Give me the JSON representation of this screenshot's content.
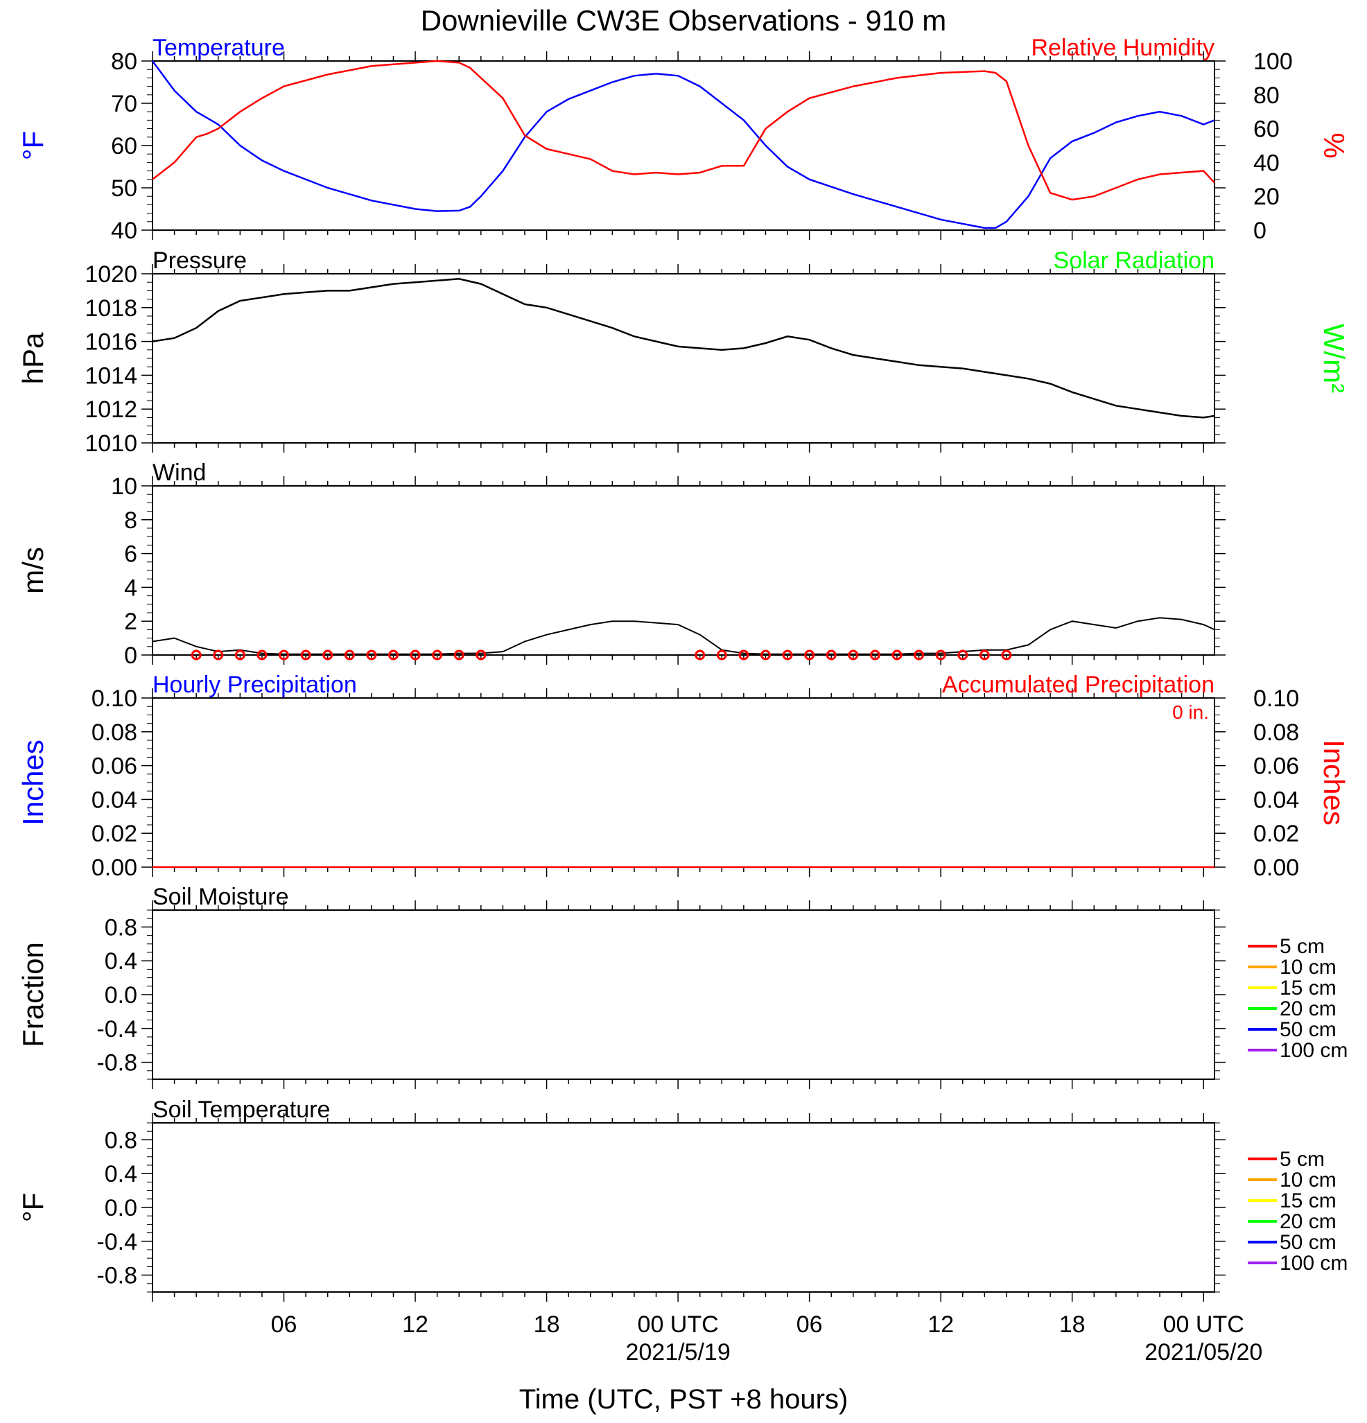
{
  "title": "Downieville CW3E Observations - 910 m",
  "x_axis": {
    "label": "Time (UTC, PST +8 hours)",
    "ticks": [
      {
        "h": 6,
        "label": "06",
        "date": ""
      },
      {
        "h": 12,
        "label": "12",
        "date": ""
      },
      {
        "h": 18,
        "label": "18",
        "date": ""
      },
      {
        "h": 24,
        "label": "00 UTC",
        "date": "2021/5/19"
      },
      {
        "h": 30,
        "label": "06",
        "date": ""
      },
      {
        "h": 36,
        "label": "12",
        "date": ""
      },
      {
        "h": 42,
        "label": "18",
        "date": ""
      },
      {
        "h": 48,
        "label": "00 UTC",
        "date": "2021/05/20"
      }
    ]
  },
  "chart_data": [
    {
      "type": "line",
      "panel": "temperature_humidity",
      "left_title": "Temperature",
      "right_title": "Relative Humidity",
      "ylabel_left": "°F",
      "ylabel_right": "%",
      "ylim_left": [
        40,
        80
      ],
      "ylim_right": [
        0,
        100
      ],
      "yticks_left": [
        "40",
        "50",
        "60",
        "70",
        "80"
      ],
      "yticks_right": [
        "0",
        "20",
        "40",
        "60",
        "80",
        "100"
      ],
      "colors": {
        "left": "#0000ff",
        "right": "#ff0000"
      },
      "x_hours": [
        0,
        1,
        2,
        2.5,
        3,
        4,
        5,
        6,
        8,
        10,
        12,
        13,
        14,
        14.5,
        15,
        16,
        17,
        18,
        19,
        20,
        21,
        22,
        23,
        24,
        25,
        26,
        27,
        28,
        29,
        30,
        32,
        34,
        36,
        38,
        38.5,
        39,
        40,
        41,
        42,
        43,
        44,
        45,
        46,
        47,
        48,
        48.5
      ],
      "series": [
        {
          "name": "Temperature",
          "axis": "left",
          "values": [
            80,
            73,
            68,
            66.5,
            65,
            60,
            56.5,
            54,
            50,
            47,
            45,
            44.5,
            44.6,
            45.5,
            48,
            54,
            62,
            68,
            71,
            73,
            75,
            76.5,
            77,
            76.5,
            74,
            70,
            66,
            60,
            55,
            52,
            48.5,
            45.5,
            42.5,
            40.5,
            40.5,
            42,
            48,
            57,
            61,
            63,
            65.5,
            67,
            68,
            67,
            65,
            66
          ]
        },
        {
          "name": "Relative Humidity",
          "axis": "right",
          "values": [
            30,
            40,
            55,
            57,
            60,
            70,
            78,
            85,
            92,
            97,
            99,
            100,
            99,
            96,
            90,
            78,
            56,
            48,
            45,
            42,
            35,
            33,
            34,
            33,
            34,
            38,
            38,
            60,
            70,
            78,
            85,
            90,
            93,
            94,
            93,
            88,
            50,
            22,
            18,
            20,
            25,
            30,
            33,
            34,
            35,
            28
          ]
        }
      ]
    },
    {
      "type": "line",
      "panel": "pressure",
      "left_title": "Pressure",
      "right_title": "Solar Radiation",
      "ylabel_left": "hPa",
      "ylabel_right": "W/m²",
      "ylim": [
        1010,
        1020
      ],
      "yticks": [
        "1010",
        "1012",
        "1014",
        "1016",
        "1018",
        "1020"
      ],
      "colors": {
        "line": "#000000",
        "right_title": "#00ff00"
      },
      "x_hours": [
        0,
        1,
        2,
        3,
        4,
        5,
        6,
        7,
        8,
        9,
        10,
        11,
        12,
        13,
        14,
        15,
        16,
        17,
        18,
        19,
        20,
        21,
        22,
        23,
        24,
        25,
        26,
        27,
        28,
        29,
        30,
        31,
        32,
        33,
        34,
        35,
        36,
        37,
        38,
        39,
        40,
        41,
        42,
        43,
        44,
        45,
        46,
        47,
        48,
        48.5
      ],
      "series": [
        {
          "name": "Pressure",
          "values": [
            1016,
            1016.2,
            1016.8,
            1017.8,
            1018.4,
            1018.6,
            1018.8,
            1018.9,
            1019.0,
            1019.0,
            1019.2,
            1019.4,
            1019.5,
            1019.6,
            1019.7,
            1019.4,
            1018.8,
            1018.2,
            1018.0,
            1017.6,
            1017.2,
            1016.8,
            1016.3,
            1016.0,
            1015.7,
            1015.6,
            1015.5,
            1015.6,
            1015.9,
            1016.3,
            1016.1,
            1015.6,
            1015.2,
            1015.0,
            1014.8,
            1014.6,
            1014.5,
            1014.4,
            1014.2,
            1014.0,
            1013.8,
            1013.5,
            1013.0,
            1012.6,
            1012.2,
            1012.0,
            1011.8,
            1011.6,
            1011.5,
            1011.6
          ]
        }
      ]
    },
    {
      "type": "line",
      "panel": "wind",
      "left_title": "Wind",
      "ylabel": "m/s",
      "ylim": [
        0,
        10
      ],
      "yticks": [
        "0",
        "2",
        "4",
        "6",
        "8",
        "10"
      ],
      "colors": {
        "speed": "#000000",
        "barbs": "#ff0000"
      },
      "x_hours": [
        0,
        1,
        2,
        3,
        4,
        5,
        6,
        7,
        8,
        9,
        10,
        11,
        12,
        13,
        14,
        15,
        16,
        17,
        18,
        19,
        20,
        21,
        22,
        23,
        24,
        25,
        26,
        27,
        28,
        29,
        30,
        31,
        32,
        33,
        34,
        35,
        36,
        37,
        38,
        39,
        40,
        41,
        42,
        43,
        44,
        45,
        46,
        47,
        48,
        48.5
      ],
      "series": [
        {
          "name": "Wind speed",
          "values": [
            0.8,
            1.0,
            0.5,
            0.2,
            0.3,
            0.1,
            0.05,
            0.05,
            0.05,
            0.05,
            0.05,
            0.05,
            0.05,
            0.05,
            0.1,
            0.1,
            0.2,
            0.8,
            1.2,
            1.5,
            1.8,
            2.0,
            2.0,
            1.9,
            1.8,
            1.2,
            0.3,
            0.1,
            0.05,
            0.05,
            0.05,
            0.05,
            0.05,
            0.05,
            0.05,
            0.1,
            0.1,
            0.2,
            0.3,
            0.3,
            0.6,
            1.5,
            2.0,
            1.8,
            1.6,
            2.0,
            2.2,
            2.1,
            1.8,
            1.5
          ]
        }
      ],
      "calm_markers_hours": [
        2,
        3,
        4,
        5,
        6,
        7,
        8,
        9,
        10,
        11,
        12,
        13,
        14,
        15,
        25,
        26,
        27,
        28,
        29,
        30,
        31,
        32,
        33,
        34,
        35,
        36,
        37,
        38,
        39
      ]
    },
    {
      "type": "line",
      "panel": "precipitation",
      "left_title": "Hourly Precipitation",
      "right_title": "Accumulated Precipitation",
      "annotation": "0 in.",
      "ylabel_left": "Inches",
      "ylabel_right": "Inches",
      "ylim": [
        0,
        0.1
      ],
      "yticks": [
        "0.00",
        "0.02",
        "0.04",
        "0.06",
        "0.08",
        "0.10"
      ],
      "colors": {
        "left": "#0000ff",
        "right": "#ff0000"
      },
      "x_hours": [
        0,
        48.5
      ],
      "series": [
        {
          "name": "Accumulated Precipitation",
          "values": [
            0,
            0
          ]
        }
      ]
    },
    {
      "type": "line",
      "panel": "soil_moisture",
      "left_title": "Soil Moisture",
      "ylabel": "Fraction",
      "ylim": [
        -1,
        1
      ],
      "yticks": [
        "-0.8",
        "-0.4",
        "0.0",
        "0.4",
        "0.8"
      ],
      "legend": [
        {
          "label": "5 cm",
          "color": "#ff0000"
        },
        {
          "label": "10 cm",
          "color": "#ffa500"
        },
        {
          "label": "15 cm",
          "color": "#ffff00"
        },
        {
          "label": "20 cm",
          "color": "#00ff00"
        },
        {
          "label": "50 cm",
          "color": "#0000ff"
        },
        {
          "label": "100 cm",
          "color": "#a020f0"
        }
      ]
    },
    {
      "type": "line",
      "panel": "soil_temperature",
      "left_title": "Soil Temperature",
      "ylabel": "°F",
      "ylim": [
        -1,
        1
      ],
      "yticks": [
        "-0.8",
        "-0.4",
        "0.0",
        "0.4",
        "0.8"
      ],
      "legend": [
        {
          "label": "5 cm",
          "color": "#ff0000"
        },
        {
          "label": "10 cm",
          "color": "#ffa500"
        },
        {
          "label": "15 cm",
          "color": "#ffff00"
        },
        {
          "label": "20 cm",
          "color": "#00ff00"
        },
        {
          "label": "50 cm",
          "color": "#0000ff"
        },
        {
          "label": "100 cm",
          "color": "#a020f0"
        }
      ]
    }
  ]
}
